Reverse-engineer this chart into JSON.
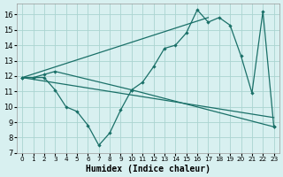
{
  "xlabel": "Humidex (Indice chaleur)",
  "bg_color": "#d8f0f0",
  "grid_color": "#aad4d0",
  "line_color": "#1a7068",
  "xlim": [
    -0.5,
    23.5
  ],
  "ylim": [
    7,
    16.7
  ],
  "yticks": [
    7,
    8,
    9,
    10,
    11,
    12,
    13,
    14,
    15,
    16
  ],
  "xticks": [
    0,
    1,
    2,
    3,
    4,
    5,
    6,
    7,
    8,
    9,
    10,
    11,
    12,
    13,
    14,
    15,
    16,
    17,
    18,
    19,
    20,
    21,
    22,
    23
  ],
  "line1_x": [
    0,
    1,
    2,
    3,
    10,
    11,
    12,
    13,
    14,
    15,
    16,
    17,
    18,
    19,
    20,
    21,
    22,
    23
  ],
  "line1_y": [
    11.9,
    11.9,
    12.1,
    12.3,
    11.1,
    11.6,
    12.6,
    13.8,
    14.0,
    14.8,
    16.3,
    15.5,
    15.8,
    15.3,
    13.3,
    10.9,
    16.2,
    8.7
  ],
  "line2_x": [
    0,
    2,
    3,
    4,
    5,
    6,
    7,
    8,
    9,
    10,
    23
  ],
  "line2_y": [
    11.9,
    11.9,
    11.1,
    10.0,
    9.7,
    8.8,
    7.5,
    8.3,
    9.8,
    11.1,
    8.7
  ],
  "line3_x": [
    0,
    23
  ],
  "line3_y": [
    11.9,
    9.3
  ],
  "line4_x": [
    0,
    17
  ],
  "line4_y": [
    11.9,
    15.8
  ]
}
